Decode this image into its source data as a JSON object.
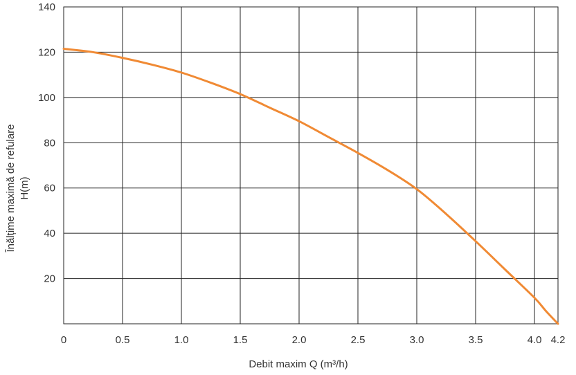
{
  "chart_data": {
    "type": "line",
    "xlabel": "Debit maxim Q (m³/h)",
    "ylabel_lines": [
      "Înălțime maximă de refulare",
      "H(m)"
    ],
    "xlim": [
      0,
      4.2
    ],
    "ylim": [
      0,
      140
    ],
    "grid": true,
    "x_ticks": [
      0,
      0.5,
      1.0,
      1.5,
      2.0,
      2.5,
      3.0,
      3.5,
      4.0,
      4.2
    ],
    "x_tick_labels": [
      "0",
      "0.5",
      "1.0",
      "1.5",
      "2.0",
      "2.5",
      "3.0",
      "3.5",
      "4.0",
      "4.2"
    ],
    "y_ticks": [
      20,
      40,
      60,
      80,
      100,
      120,
      140
    ],
    "y_tick_labels": [
      "20",
      "40",
      "60",
      "80",
      "100",
      "120",
      "140"
    ],
    "series": [
      {
        "color": "#F08A34",
        "x": [
          0,
          0.25,
          0.5,
          0.75,
          1.0,
          1.25,
          1.5,
          1.75,
          2.0,
          2.25,
          2.5,
          2.75,
          3.0,
          3.25,
          3.5,
          3.75,
          4.0,
          4.1,
          4.2
        ],
        "y": [
          121.5,
          120,
          117.5,
          114.5,
          111,
          106.5,
          101.5,
          95.5,
          89.5,
          82.5,
          75.5,
          68,
          59.5,
          48.5,
          36.5,
          24,
          11.5,
          5.5,
          0
        ]
      }
    ]
  }
}
